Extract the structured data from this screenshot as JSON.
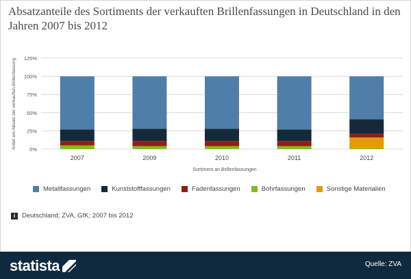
{
  "title": "Absatzanteile des Sortiments der verkauften Brillenfassungen in Deutschland in den Jahren 2007 bis 2012",
  "chart_data": {
    "type": "bar",
    "stacked": true,
    "categories": [
      "2007",
      "2009",
      "2010",
      "2011",
      "2012"
    ],
    "series": [
      {
        "name": "Metallfassungen",
        "color": "#4f7ea8",
        "values": [
          73,
          72,
          72,
          73,
          59
        ]
      },
      {
        "name": "Kunststofffassungen",
        "color": "#142a3b",
        "values": [
          16,
          17,
          17,
          16,
          20
        ]
      },
      {
        "name": "Fadenfassungen",
        "color": "#8f1f14",
        "values": [
          6,
          7,
          7,
          7,
          5
        ]
      },
      {
        "name": "Bohrfassungen",
        "color": "#7cbf1e",
        "values": [
          5,
          4,
          4,
          4,
          1
        ]
      },
      {
        "name": "Sonstige Materialien",
        "color": "#e39a0c",
        "values": [
          0,
          0,
          0,
          0,
          15
        ]
      }
    ],
    "yticks": [
      "0%",
      "25%",
      "50%",
      "75%",
      "100%",
      "125%"
    ],
    "ylim": [
      0,
      125
    ],
    "xlabel": "Sortiment an Brillenfassungen",
    "ylabel": "Anteil am Absatz der verkauften Brillenfassung"
  },
  "source_note": "Deutschland; ZVA, GfK; 2007 bis 2012",
  "footer": {
    "brand": "statista",
    "source": "Quelle: ZVA"
  }
}
